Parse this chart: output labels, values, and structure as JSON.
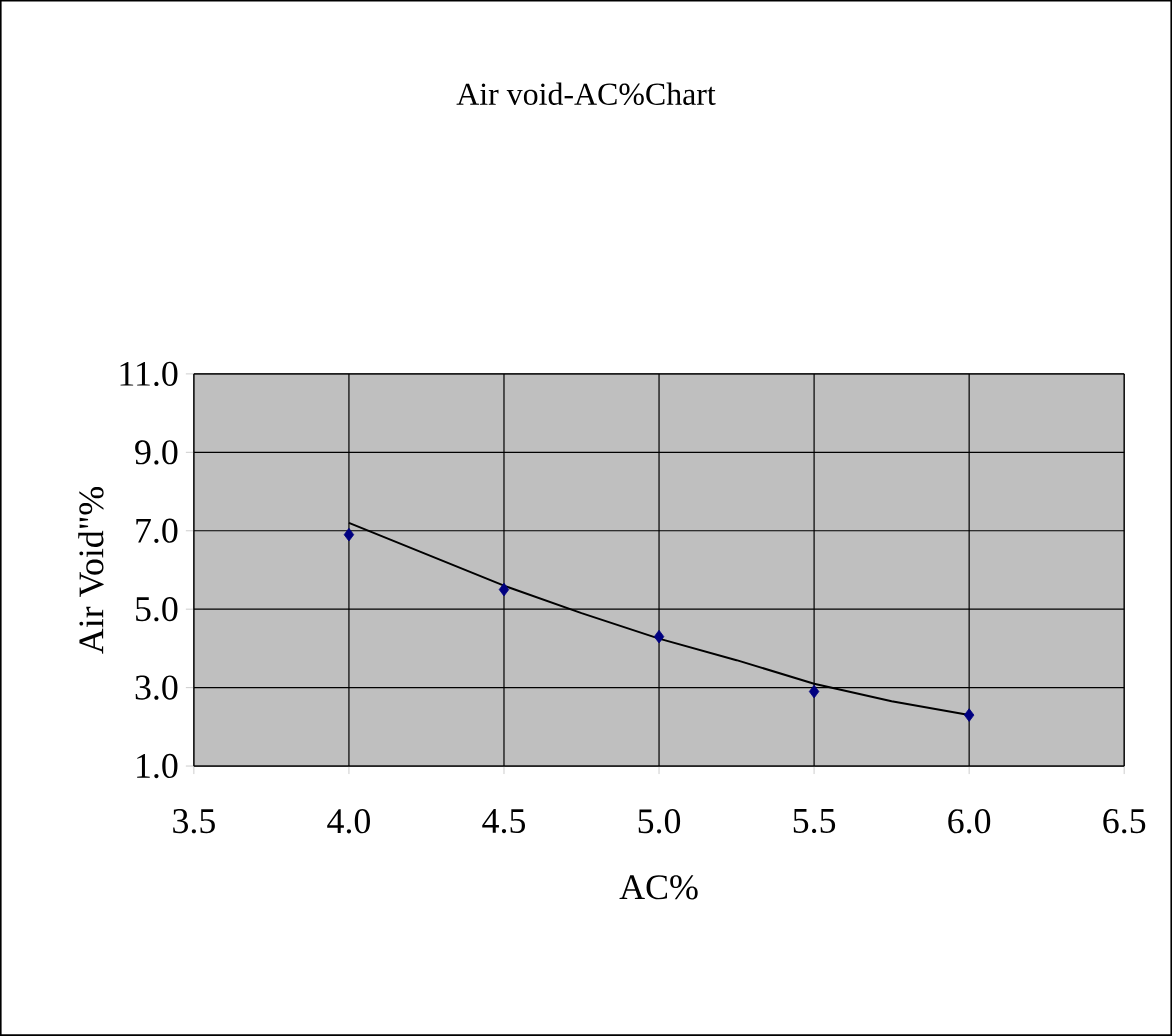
{
  "chart_data": {
    "type": "scatter",
    "title": "Air void-AC%Chart",
    "xlabel": "AC%",
    "ylabel": "Air Void\"%",
    "xlim": [
      3.5,
      6.5
    ],
    "xticks": [
      {
        "value": 3.5,
        "label": "3.5"
      },
      {
        "value": 4.0,
        "label": "4.0"
      },
      {
        "value": 4.5,
        "label": "4.5"
      },
      {
        "value": 5.0,
        "label": "5.0"
      },
      {
        "value": 5.5,
        "label": "5.5"
      },
      {
        "value": 6.0,
        "label": "6.0"
      },
      {
        "value": 6.5,
        "label": "6.5"
      }
    ],
    "ylim": [
      1.0,
      11.0
    ],
    "yticks": [
      {
        "value": 1.0,
        "label": "1.0"
      },
      {
        "value": 3.0,
        "label": "3.0"
      },
      {
        "value": 5.0,
        "label": "5.0"
      },
      {
        "value": 7.0,
        "label": "7.0"
      },
      {
        "value": 9.0,
        "label": "9.0"
      },
      {
        "value": 11.0,
        "label": "11.0"
      }
    ],
    "grid": true,
    "series": [
      {
        "marker": "diamond",
        "color": "#000080",
        "x": [
          4.0,
          4.5,
          5.0,
          5.5,
          6.0
        ],
        "values": [
          6.9,
          5.5,
          4.3,
          2.9,
          2.3
        ]
      },
      {
        "type": "line",
        "marker": "none",
        "color": "#000000",
        "x": [
          4.0,
          4.25,
          4.5,
          4.75,
          5.0,
          5.25,
          5.5,
          5.75,
          6.0
        ],
        "values": [
          7.2,
          6.4,
          5.6,
          4.9,
          4.25,
          3.7,
          3.1,
          2.65,
          2.3
        ]
      }
    ]
  }
}
